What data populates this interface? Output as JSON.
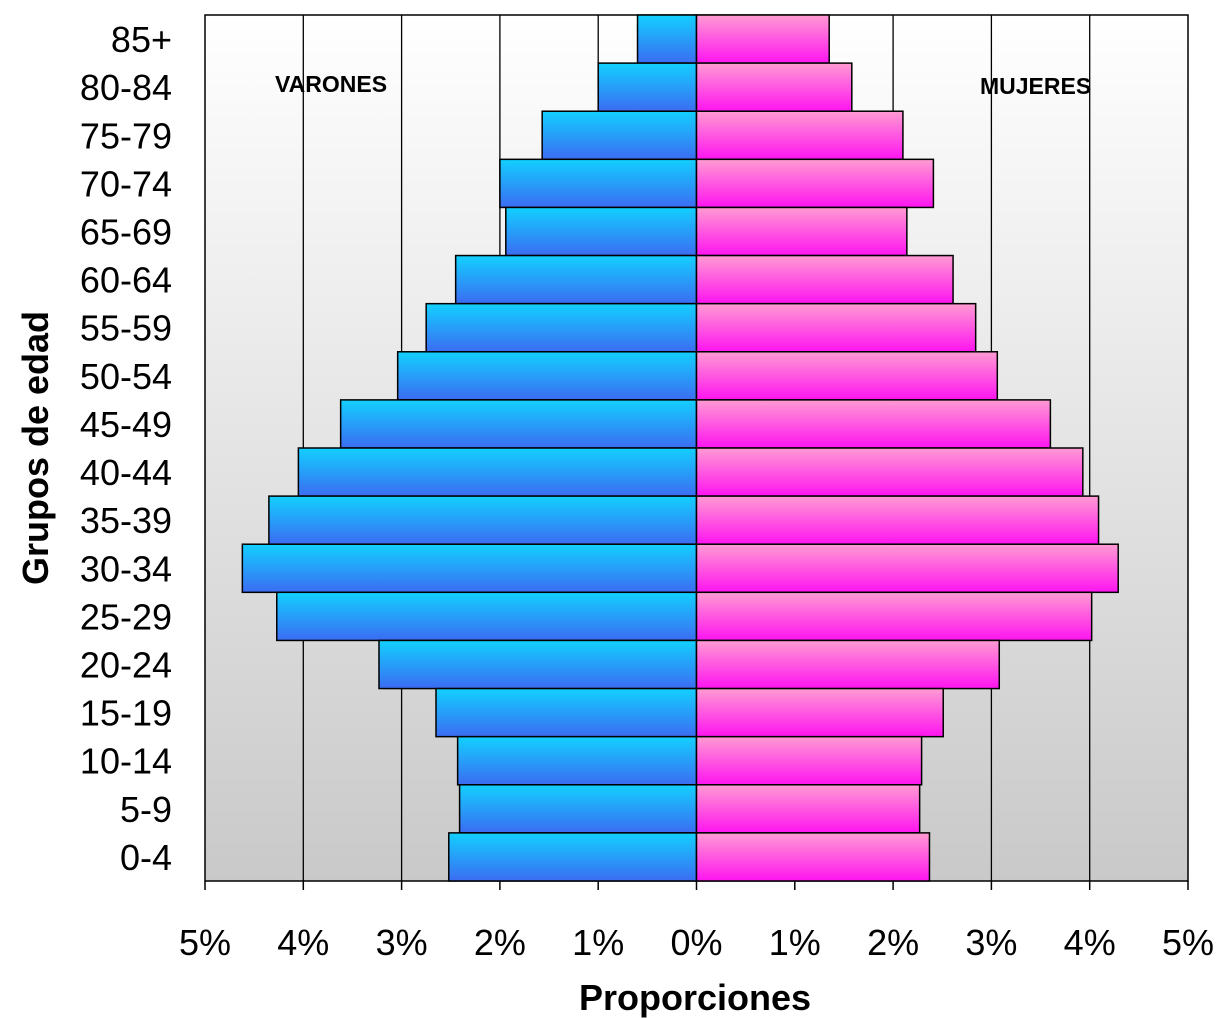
{
  "chart_data": {
    "type": "bar",
    "orientation": "horizontal-population-pyramid",
    "ylabel": "Grupos de edad",
    "xlabel": "Proporciones",
    "xlim": [
      -5,
      5
    ],
    "x_tick_labels": [
      "5%",
      "4%",
      "3%",
      "2%",
      "1%",
      "0%",
      "1%",
      "2%",
      "3%",
      "4%",
      "5%"
    ],
    "categories": [
      "85+",
      "80-84",
      "75-79",
      "70-74",
      "65-69",
      "60-64",
      "55-59",
      "50-54",
      "45-49",
      "40-44",
      "35-39",
      "30-34",
      "25-29",
      "20-24",
      "15-19",
      "10-14",
      "5-9",
      "0-4"
    ],
    "series": [
      {
        "name": "VARONES",
        "side": "left",
        "colors": {
          "top": "#12d0ff",
          "bottom": "#3b6cf2"
        },
        "values": [
          0.6,
          1.0,
          1.57,
          2.0,
          1.94,
          2.45,
          2.75,
          3.04,
          3.62,
          4.05,
          4.35,
          4.62,
          4.27,
          3.23,
          2.65,
          2.43,
          2.41,
          2.52
        ]
      },
      {
        "name": "MUJERES",
        "side": "right",
        "colors": {
          "top": "#ff9bd2",
          "bottom": "#ff14f0"
        },
        "values": [
          1.35,
          1.58,
          2.1,
          2.41,
          2.14,
          2.61,
          2.84,
          3.06,
          3.6,
          3.93,
          4.09,
          4.29,
          4.02,
          3.08,
          2.51,
          2.29,
          2.27,
          2.37
        ]
      }
    ],
    "grid": {
      "vertical": true,
      "horizontal": false
    },
    "background_gradient": {
      "top": "#ffffff",
      "bottom": "#c9c9c9"
    }
  }
}
